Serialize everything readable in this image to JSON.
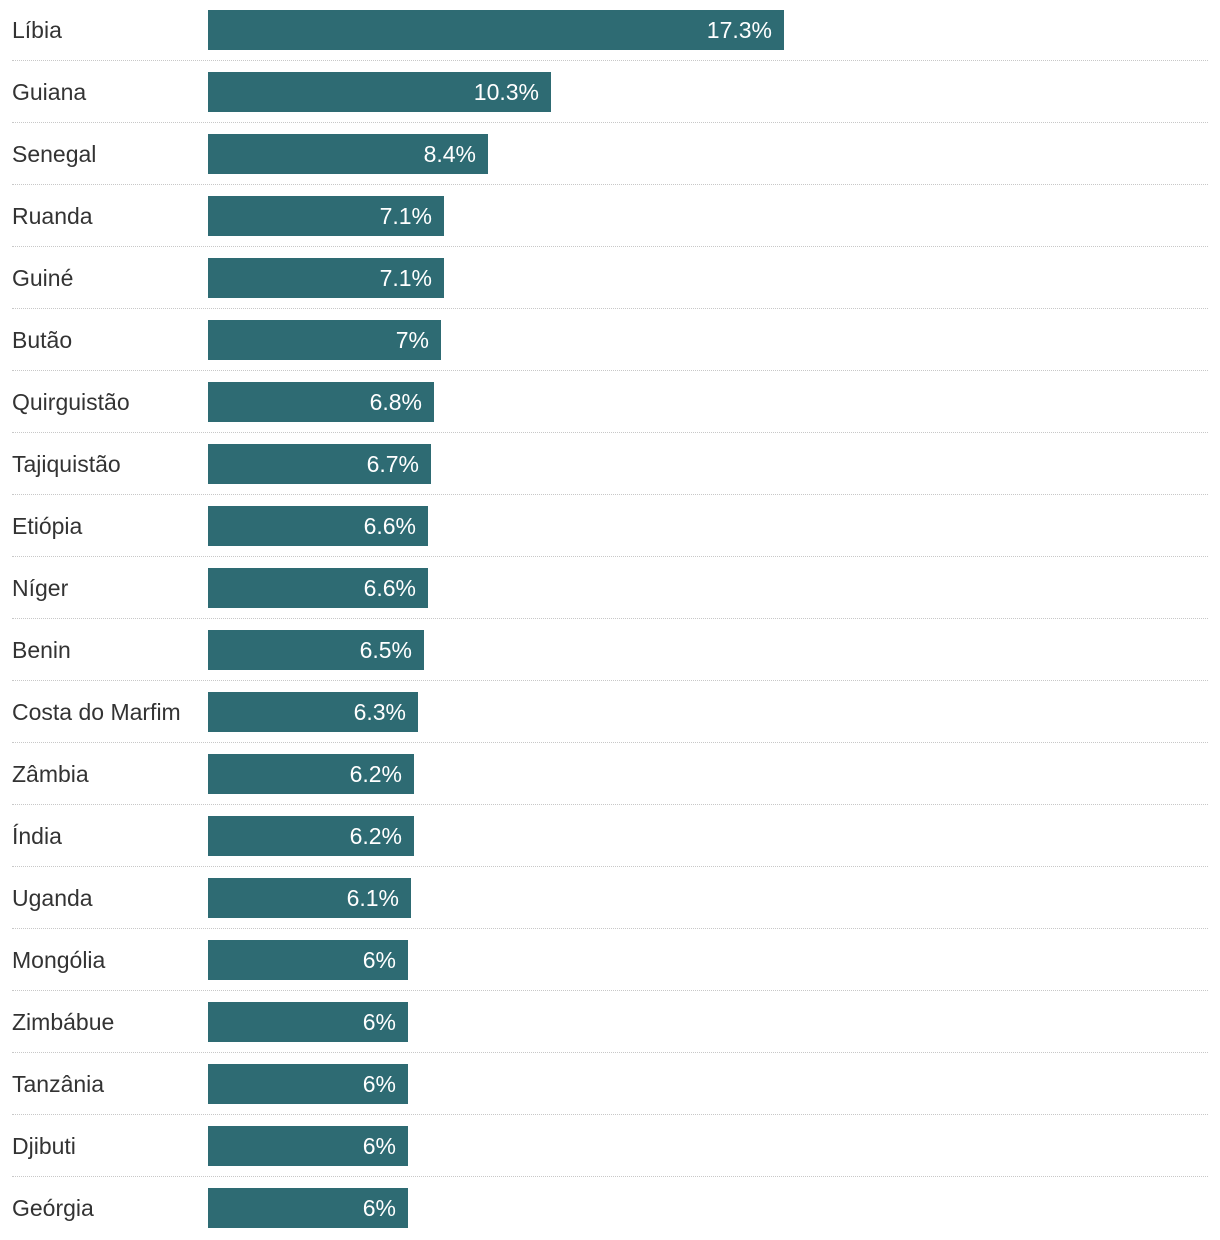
{
  "chart_data": {
    "type": "bar",
    "orientation": "horizontal",
    "bar_color": "#2e6b73",
    "value_label_color": "#ffffff",
    "xlim": [
      0,
      18
    ],
    "grid": false,
    "categories": [
      "Líbia",
      "Guiana",
      "Senegal",
      "Ruanda",
      "Guiné",
      "Butão",
      "Quirguistão",
      "Tajiquistão",
      "Etiópia",
      "Níger",
      "Benin",
      "Costa do Marfim",
      "Zâmbia",
      "Índia",
      "Uganda",
      "Mongólia",
      "Zimbábue",
      "Tanzânia",
      "Djibuti",
      "Geórgia"
    ],
    "values": [
      17.3,
      10.3,
      8.4,
      7.1,
      7.1,
      7.0,
      6.8,
      6.7,
      6.6,
      6.6,
      6.5,
      6.3,
      6.2,
      6.2,
      6.1,
      6.0,
      6.0,
      6.0,
      6.0,
      6.0
    ],
    "value_labels": [
      "17.3%",
      "10.3%",
      "8.4%",
      "7.1%",
      "7.1%",
      "7%",
      "6.8%",
      "6.7%",
      "6.6%",
      "6.6%",
      "6.5%",
      "6.3%",
      "6.2%",
      "6.2%",
      "6.1%",
      "6%",
      "6%",
      "6%",
      "6%",
      "6%"
    ]
  }
}
